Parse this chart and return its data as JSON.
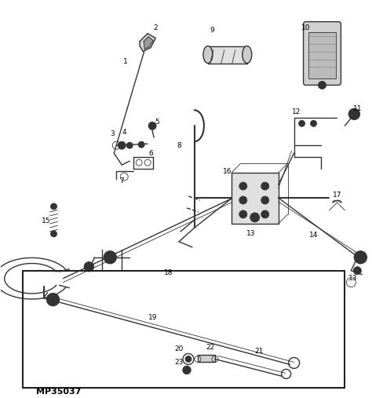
{
  "figure_code": "MP35037",
  "background_color": "#ffffff",
  "line_color": "#333333",
  "text_color": "#000000",
  "figsize": [
    4.74,
    5.07
  ],
  "dpi": 100,
  "lw_thick": 1.5,
  "lw_med": 1.0,
  "lw_thin": 0.6,
  "fs_label": 6.5
}
